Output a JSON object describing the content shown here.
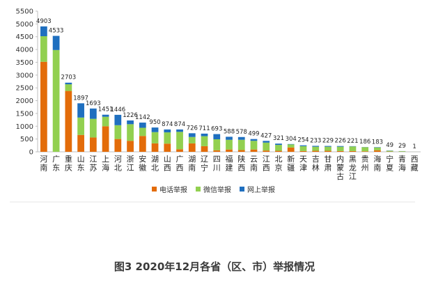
{
  "chart_data": {
    "type": "bar",
    "stacked": true,
    "caption": "图3  2020年12月各省（区、市）举报情况",
    "categories": [
      "河南",
      "广东",
      "重庆",
      "山东",
      "江苏",
      "上海",
      "河北",
      "浙江",
      "安徽",
      "湖北",
      "山西",
      "广西",
      "湖南",
      "辽宁",
      "四川",
      "福建",
      "陕西",
      "云南",
      "江西",
      "北京",
      "新疆",
      "天津",
      "吉林",
      "甘肃",
      "内蒙古",
      "黑龙江",
      "贵州",
      "海南",
      "宁夏",
      "青海",
      "西藏"
    ],
    "totals": [
      4903,
      4533,
      2703,
      1897,
      1693,
      1451,
      1446,
      1226,
      1142,
      950,
      874,
      874,
      726,
      711,
      693,
      588,
      578,
      499,
      427,
      321,
      304,
      254,
      233,
      229,
      226,
      221,
      186,
      183,
      49,
      29,
      1
    ],
    "series": [
      {
        "name": "电话举报",
        "color": "#e36c0a",
        "values": [
          3520,
          0,
          2380,
          660,
          560,
          1000,
          500,
          430,
          620,
          330,
          320,
          100,
          330,
          220,
          60,
          90,
          70,
          90,
          50,
          40,
          170,
          30,
          40,
          40,
          30,
          30,
          20,
          60,
          10,
          5,
          0
        ]
      },
      {
        "name": "微信举报",
        "color": "#92d050",
        "values": [
          1000,
          3980,
          260,
          680,
          730,
          370,
          540,
          650,
          320,
          440,
          440,
          680,
          250,
          390,
          430,
          380,
          400,
          340,
          310,
          230,
          120,
          190,
          160,
          160,
          170,
          180,
          160,
          110,
          30,
          20,
          1
        ]
      },
      {
        "name": "网上举报",
        "color": "#1f6fbf",
        "values": [
          383,
          553,
          63,
          557,
          403,
          81,
          406,
          146,
          202,
          180,
          114,
          94,
          146,
          101,
          203,
          118,
          108,
          69,
          67,
          51,
          14,
          34,
          33,
          29,
          26,
          11,
          6,
          13,
          9,
          4,
          0
        ]
      }
    ],
    "ylim": [
      0,
      5500
    ],
    "yticks": [
      0,
      500,
      1000,
      1500,
      2000,
      2500,
      3000,
      3500,
      4000,
      4500,
      5000,
      5500
    ],
    "legend_position": "bottom",
    "grid": false
  }
}
